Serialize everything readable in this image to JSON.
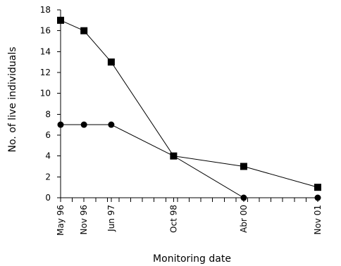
{
  "chart_data": {
    "type": "line",
    "title": "",
    "xlabel": "Monitoring date",
    "ylabel": "No. of live individuals",
    "ylim": [
      0,
      18
    ],
    "yticks": [
      0,
      2,
      4,
      6,
      8,
      10,
      12,
      14,
      16,
      18
    ],
    "xlim": [
      "1996-05",
      "2001-11"
    ],
    "x_tick_labels": [
      {
        "date": "1996-05",
        "label": "May 96"
      },
      {
        "date": "1996-11",
        "label": "Nov 96"
      },
      {
        "date": "1997-06",
        "label": "Jun 97"
      },
      {
        "date": "1998-10",
        "label": "Oct 98"
      },
      {
        "date": "2000-04",
        "label": "Abr 00"
      },
      {
        "date": "2001-11",
        "label": "Nov 01"
      }
    ],
    "series": [
      {
        "marker": "square",
        "color": "#000000",
        "points": [
          {
            "x": "1996-05",
            "y": 17
          },
          {
            "x": "1996-11",
            "y": 16
          },
          {
            "x": "1997-06",
            "y": 13
          },
          {
            "x": "1998-10",
            "y": 4
          },
          {
            "x": "2000-04",
            "y": 3
          },
          {
            "x": "2001-11",
            "y": 1
          }
        ]
      },
      {
        "marker": "circle",
        "color": "#000000",
        "points": [
          {
            "x": "1996-05",
            "y": 7
          },
          {
            "x": "1996-11",
            "y": 7
          },
          {
            "x": "1997-06",
            "y": 7
          },
          {
            "x": "1998-10",
            "y": 4
          },
          {
            "x": "2000-04",
            "y": 0
          },
          {
            "x": "2001-11",
            "y": 0
          }
        ]
      }
    ],
    "grid": false,
    "legend": "none"
  }
}
